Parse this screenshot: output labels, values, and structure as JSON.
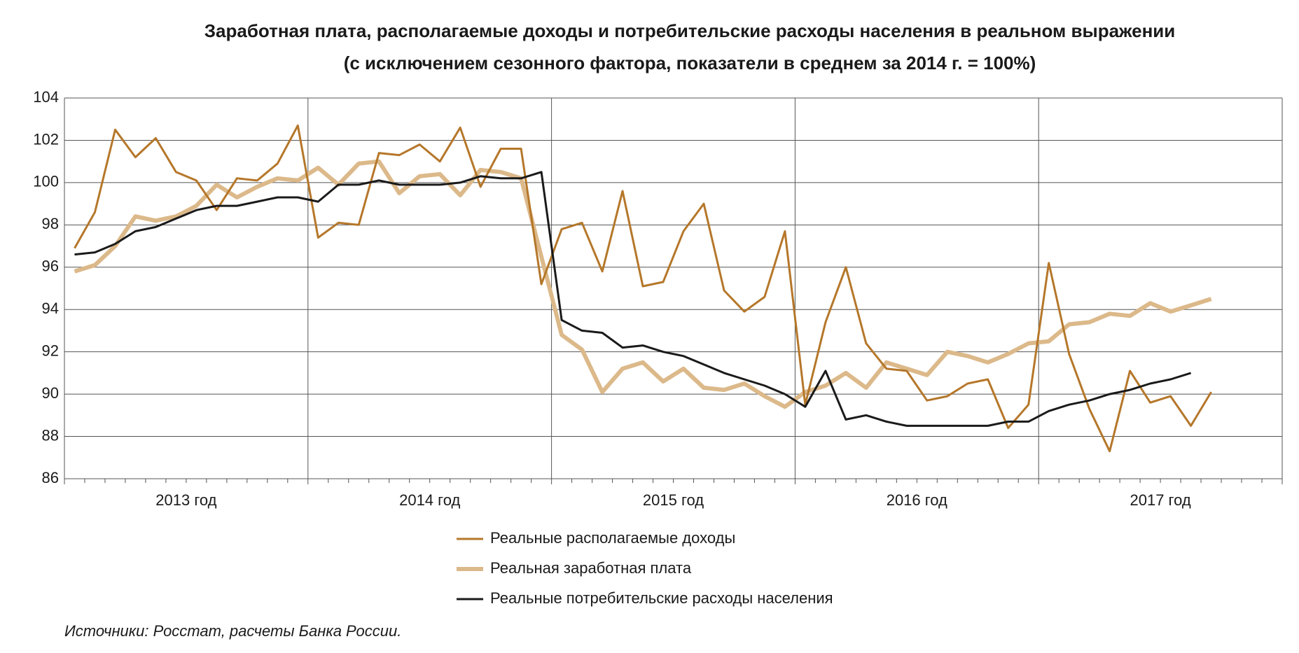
{
  "chart_data": {
    "type": "line",
    "title": "Заработная плата, располагаемые доходы и потребительские расходы населения в реальном выражении",
    "subtitle": "(с исключением сезонного фактора, показатели в среднем за 2014 г. = 100%)",
    "categories": [
      null,
      null,
      null,
      null,
      null,
      null,
      null,
      null,
      null,
      null,
      null,
      null,
      null,
      null,
      null,
      null,
      null,
      null,
      null,
      null,
      null,
      null,
      null,
      null,
      null,
      null,
      null,
      null,
      null,
      null,
      null,
      null,
      null,
      null,
      null,
      null,
      null,
      null,
      null,
      null,
      null,
      null,
      null,
      null,
      null,
      null,
      null,
      null,
      null,
      null,
      null,
      null,
      null,
      null,
      null,
      null,
      null,
      null,
      null,
      null
    ],
    "year_labels": [
      "2013 год",
      "2014 год",
      "2015 год",
      "2016 год",
      "2017 год"
    ],
    "series": [
      {
        "name": "Реальные располагаемые доходы",
        "color": "#b5772a",
        "width": 3,
        "values": [
          96.9,
          98.6,
          102.5,
          101.2,
          102.1,
          100.5,
          100.1,
          98.7,
          100.2,
          100.1,
          100.9,
          102.7,
          97.4,
          98.1,
          98.0,
          101.4,
          101.3,
          101.8,
          101.0,
          102.6,
          99.8,
          101.6,
          101.6,
          95.2,
          97.8,
          98.1,
          95.8,
          99.6,
          95.1,
          95.3,
          97.7,
          99.0,
          94.9,
          93.9,
          94.6,
          97.7,
          89.5,
          93.4,
          96.0,
          92.4,
          91.2,
          91.1,
          89.7,
          89.9,
          90.5,
          90.7,
          88.4,
          89.5,
          96.2,
          91.9,
          89.3,
          87.3,
          91.1,
          89.6,
          89.9,
          88.5,
          90.1,
          null,
          null,
          null
        ]
      },
      {
        "name": "Реальная заработная плата",
        "color": "#dcb98a",
        "width": 6,
        "values": [
          95.8,
          96.1,
          97.0,
          98.4,
          98.2,
          98.4,
          98.9,
          99.9,
          99.3,
          99.8,
          100.2,
          100.1,
          100.7,
          99.9,
          100.9,
          101.0,
          99.5,
          100.3,
          100.4,
          99.4,
          100.6,
          100.5,
          100.2,
          96.5,
          92.8,
          92.1,
          90.1,
          91.2,
          91.5,
          90.6,
          91.2,
          90.3,
          90.2,
          90.5,
          89.9,
          89.4,
          90.1,
          90.4,
          91.0,
          90.3,
          91.5,
          91.2,
          90.9,
          92.0,
          91.8,
          91.5,
          91.9,
          92.4,
          92.5,
          93.3,
          93.4,
          93.8,
          93.7,
          94.3,
          93.9,
          94.2,
          94.5,
          null,
          null,
          null
        ]
      },
      {
        "name": "Реальные потребительские расходы населения",
        "color": "#1a1a1a",
        "width": 3,
        "values": [
          96.6,
          96.7,
          97.1,
          97.7,
          97.9,
          98.3,
          98.7,
          98.9,
          98.9,
          99.1,
          99.3,
          99.3,
          99.1,
          99.9,
          99.9,
          100.1,
          99.9,
          99.9,
          99.9,
          100.0,
          100.3,
          100.2,
          100.2,
          100.5,
          93.5,
          93.0,
          92.9,
          92.2,
          92.3,
          92.0,
          91.8,
          91.4,
          91.0,
          90.7,
          90.4,
          90.0,
          89.4,
          91.1,
          88.8,
          89.0,
          88.7,
          88.5,
          88.5,
          88.5,
          88.5,
          88.5,
          88.7,
          88.7,
          89.2,
          89.5,
          89.7,
          90.0,
          90.2,
          90.5,
          90.7,
          91.0,
          null,
          null,
          null,
          null
        ]
      }
    ],
    "ylim": [
      86,
      104
    ],
    "yticks": [
      86,
      88,
      90,
      92,
      94,
      96,
      98,
      100,
      102,
      104
    ],
    "grid": true,
    "source": "Источники: Росстат, расчеты Банка России."
  }
}
